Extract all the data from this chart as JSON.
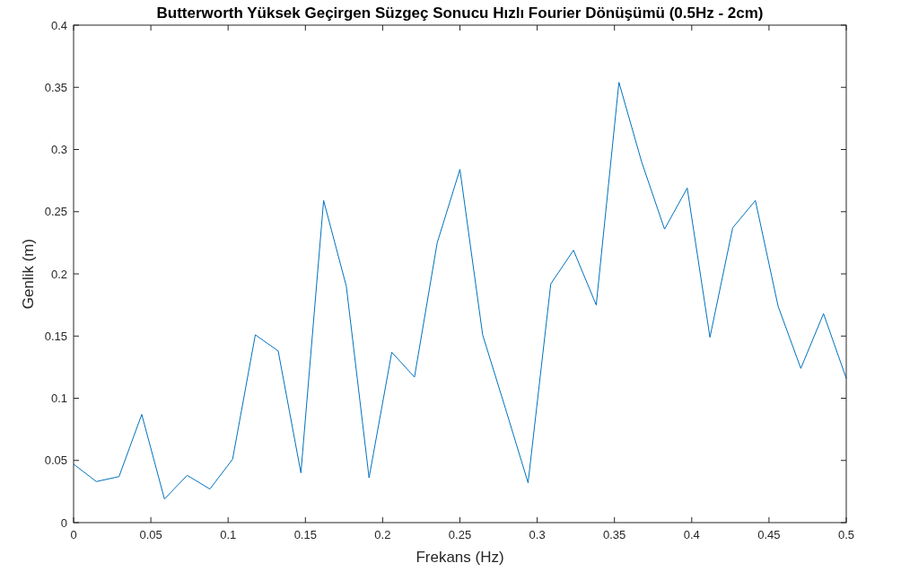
{
  "chart_data": {
    "type": "line",
    "title": "Butterworth Yüksek Geçirgen Süzgeç Sonucu Hızlı Fourier Dönüşümü (0.5Hz - 2cm)",
    "xlabel": "Frekans (Hz)",
    "ylabel": "Genlik (m)",
    "x": [
      0,
      0.0147,
      0.0294,
      0.0441,
      0.0588,
      0.0735,
      0.0882,
      0.1029,
      0.1176,
      0.1324,
      0.1471,
      0.1618,
      0.1765,
      0.1912,
      0.2059,
      0.2206,
      0.2353,
      0.25,
      0.2647,
      0.2794,
      0.2941,
      0.3088,
      0.3235,
      0.3382,
      0.3529,
      0.3676,
      0.3824,
      0.3971,
      0.4118,
      0.4265,
      0.4412,
      0.4559,
      0.4706,
      0.4853,
      0.5
    ],
    "series": [
      {
        "color": "#0072bd",
        "values": [
          0.047,
          0.033,
          0.037,
          0.087,
          0.019,
          0.038,
          0.027,
          0.051,
          0.151,
          0.138,
          0.04,
          0.259,
          0.19,
          0.036,
          0.137,
          0.117,
          0.225,
          0.284,
          0.151,
          0.092,
          0.032,
          0.192,
          0.219,
          0.175,
          0.354,
          0.29,
          0.236,
          0.269,
          0.149,
          0.237,
          0.259,
          0.174,
          0.124,
          0.168,
          0.116
        ]
      }
    ],
    "xlim": [
      0,
      0.5
    ],
    "xticks": [
      0,
      0.05,
      0.1,
      0.15,
      0.2,
      0.25,
      0.3,
      0.35,
      0.4,
      0.45,
      0.5
    ],
    "ylim": [
      0,
      0.4
    ],
    "yticks": [
      0,
      0.05,
      0.1,
      0.15,
      0.2,
      0.25,
      0.3,
      0.35,
      0.4
    ],
    "grid": false,
    "marker": "none",
    "line_style": "solid"
  }
}
